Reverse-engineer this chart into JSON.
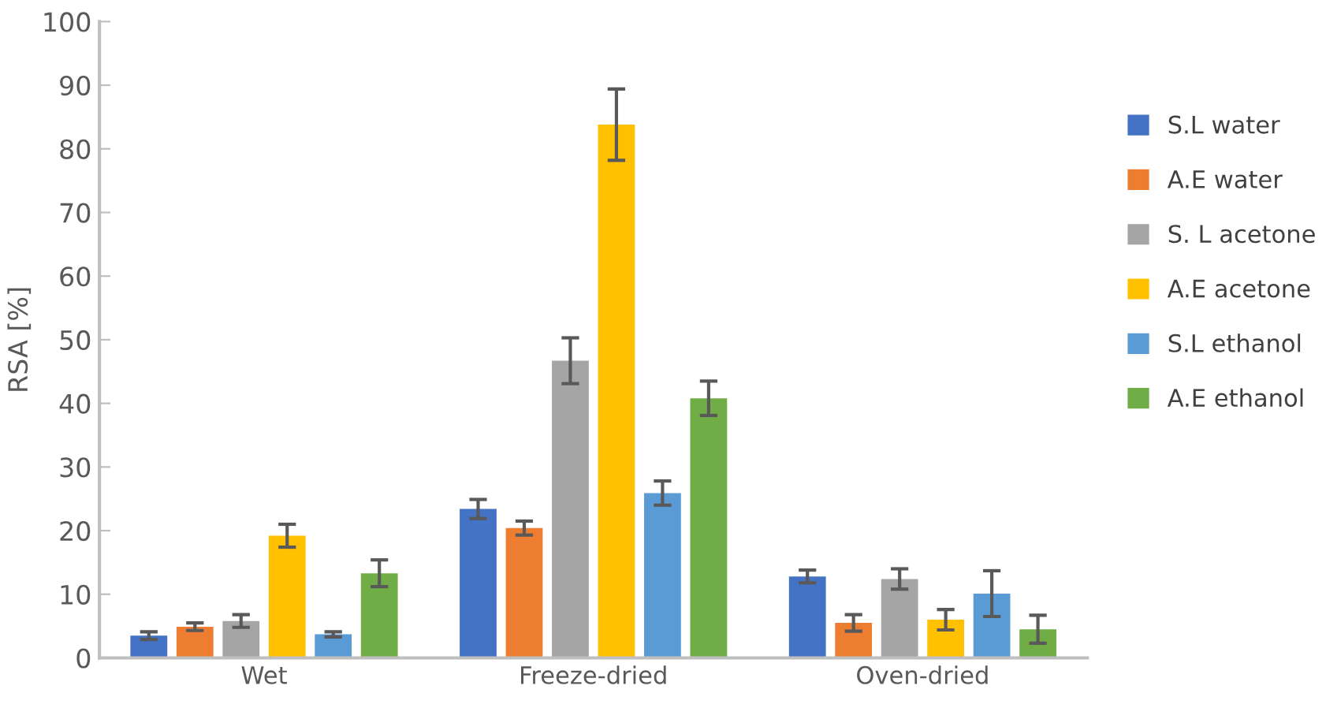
{
  "chart_data": {
    "type": "bar",
    "ylabel": "RSA [%]",
    "categories": [
      "Wet",
      "Freeze-dried",
      "Oven-dried"
    ],
    "series": [
      {
        "name": "S.L water",
        "color": "#4472c4",
        "values": [
          3.5,
          23.4,
          12.8
        ],
        "errors": [
          0.6,
          1.5,
          1.0
        ]
      },
      {
        "name": "A.E water",
        "color": "#ed7d31",
        "values": [
          4.9,
          20.4,
          5.5
        ],
        "errors": [
          0.6,
          1.1,
          1.3
        ]
      },
      {
        "name": "S. L acetone",
        "color": "#a5a5a5",
        "values": [
          5.8,
          46.7,
          12.4
        ],
        "errors": [
          1.0,
          3.6,
          1.6
        ]
      },
      {
        "name": "A.E acetone",
        "color": "#ffc000",
        "values": [
          19.2,
          83.8,
          6.0
        ],
        "errors": [
          1.8,
          5.6,
          1.6
        ]
      },
      {
        "name": "S.L ethanol",
        "color": "#5b9bd5",
        "values": [
          3.7,
          25.9,
          10.1
        ],
        "errors": [
          0.4,
          1.9,
          3.6
        ]
      },
      {
        "name": "A.E ethanol",
        "color": "#70ad47",
        "values": [
          13.3,
          40.8,
          4.5
        ],
        "errors": [
          2.1,
          2.7,
          2.2
        ]
      }
    ],
    "ylim": [
      0,
      100
    ],
    "yticks": [
      0,
      10,
      20,
      30,
      40,
      50,
      60,
      70,
      80,
      90,
      100
    ],
    "grid": false,
    "legend": "right"
  }
}
